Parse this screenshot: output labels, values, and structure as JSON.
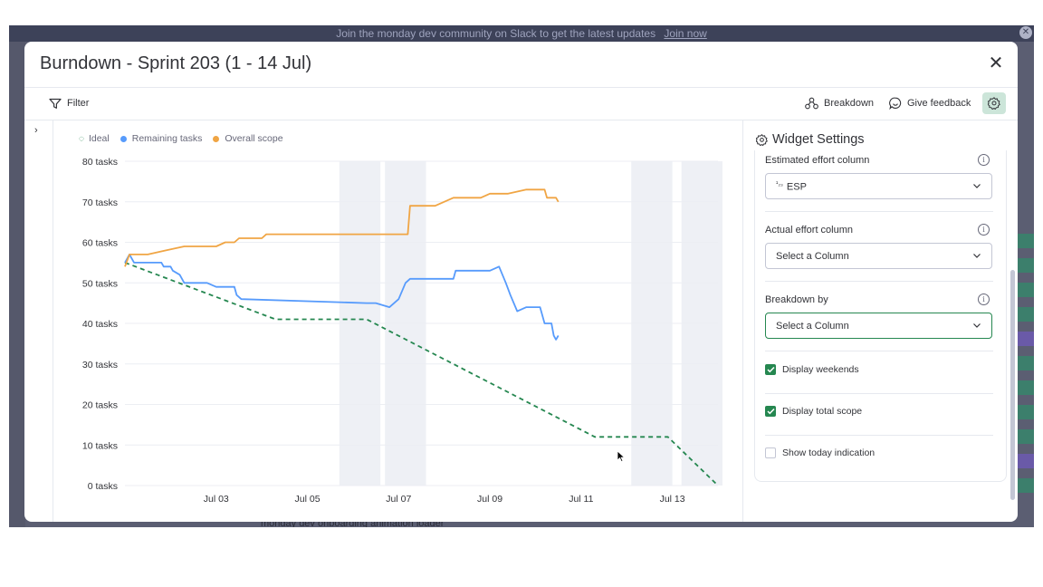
{
  "background": {
    "banner_text": "Join the monday dev community on Slack to get the latest updates",
    "banner_link": "Join now",
    "bottom_text": "monday dev onboarding animation loader"
  },
  "modal": {
    "title": "Burndown - Sprint 203 (1 - 14 Jul)",
    "toolbar": {
      "filter": "Filter",
      "breakdown": "Breakdown",
      "feedback": "Give feedback"
    }
  },
  "legend": {
    "ideal": "Ideal",
    "remaining": "Remaining tasks",
    "scope": "Overall scope"
  },
  "colors": {
    "ideal": "#258750",
    "remaining": "#579bfc",
    "scope": "#f0a544",
    "accent": "#258750",
    "weekend_band": "#eef0f5"
  },
  "chart_data": {
    "type": "line",
    "title": "",
    "xlabel": "",
    "ylabel": "",
    "ylim": [
      0,
      80
    ],
    "yticks": [
      "0 tasks",
      "10 tasks",
      "20 tasks",
      "30 tasks",
      "40 tasks",
      "50 tasks",
      "60 tasks",
      "70 tasks",
      "80 tasks"
    ],
    "xticks": [
      "Jul 03",
      "Jul 05",
      "Jul 07",
      "Jul 09",
      "Jul 11",
      "Jul 13"
    ],
    "xlim_day": [
      1.0,
      14.0
    ],
    "weekend_bands": [
      [
        5.7,
        6.6
      ],
      [
        6.7,
        7.6
      ],
      [
        12.1,
        13.0
      ],
      [
        13.2,
        14.1
      ]
    ],
    "grid": true,
    "series": [
      {
        "name": "Ideal",
        "style": "dashed",
        "points": [
          [
            1.0,
            55
          ],
          [
            4.3,
            41
          ],
          [
            6.3,
            41
          ],
          [
            11.3,
            12
          ],
          [
            12.9,
            12
          ],
          [
            14.0,
            0
          ]
        ]
      },
      {
        "name": "Remaining tasks",
        "points": [
          [
            1.0,
            55
          ],
          [
            1.1,
            57
          ],
          [
            1.2,
            55
          ],
          [
            1.8,
            55
          ],
          [
            1.85,
            54
          ],
          [
            2.0,
            54
          ],
          [
            2.05,
            53
          ],
          [
            2.2,
            52
          ],
          [
            2.3,
            50
          ],
          [
            2.8,
            50
          ],
          [
            3.0,
            49
          ],
          [
            3.4,
            49
          ],
          [
            3.45,
            47
          ],
          [
            3.55,
            46
          ],
          [
            6.3,
            45
          ],
          [
            6.5,
            45
          ],
          [
            6.8,
            44
          ],
          [
            7.0,
            46
          ],
          [
            7.15,
            50
          ],
          [
            7.25,
            51
          ],
          [
            8.2,
            51
          ],
          [
            8.25,
            53
          ],
          [
            8.6,
            53
          ],
          [
            9.0,
            53
          ],
          [
            9.2,
            54
          ],
          [
            9.35,
            50
          ],
          [
            9.45,
            47
          ],
          [
            9.6,
            43
          ],
          [
            9.8,
            44
          ],
          [
            10.1,
            44
          ],
          [
            10.2,
            40
          ],
          [
            10.35,
            40
          ],
          [
            10.4,
            37
          ],
          [
            10.45,
            36
          ],
          [
            10.5,
            37
          ]
        ]
      },
      {
        "name": "Overall scope",
        "points": [
          [
            1.0,
            54
          ],
          [
            1.1,
            57
          ],
          [
            1.5,
            57
          ],
          [
            1.9,
            58
          ],
          [
            2.3,
            59
          ],
          [
            3.0,
            59
          ],
          [
            3.2,
            60
          ],
          [
            3.4,
            60
          ],
          [
            3.5,
            61
          ],
          [
            4.0,
            61
          ],
          [
            4.1,
            62
          ],
          [
            7.2,
            62
          ],
          [
            7.25,
            69
          ],
          [
            7.8,
            69
          ],
          [
            8.2,
            71
          ],
          [
            8.8,
            71
          ],
          [
            9.0,
            72
          ],
          [
            9.4,
            72
          ],
          [
            9.8,
            73
          ],
          [
            10.2,
            73
          ],
          [
            10.25,
            71
          ],
          [
            10.45,
            71
          ],
          [
            10.5,
            70
          ]
        ]
      }
    ]
  },
  "panel": {
    "title": "Widget Settings",
    "estimated_label": "Estimated effort column",
    "estimated_value": "ESP",
    "estimated_icon": "numbers-icon",
    "actual_label": "Actual effort column",
    "actual_value": "Select a Column",
    "breakdown_label": "Breakdown by",
    "breakdown_value": "Select a Column",
    "display_weekends": "Display weekends",
    "display_total_scope": "Display total scope",
    "show_today": "Show today indication"
  }
}
